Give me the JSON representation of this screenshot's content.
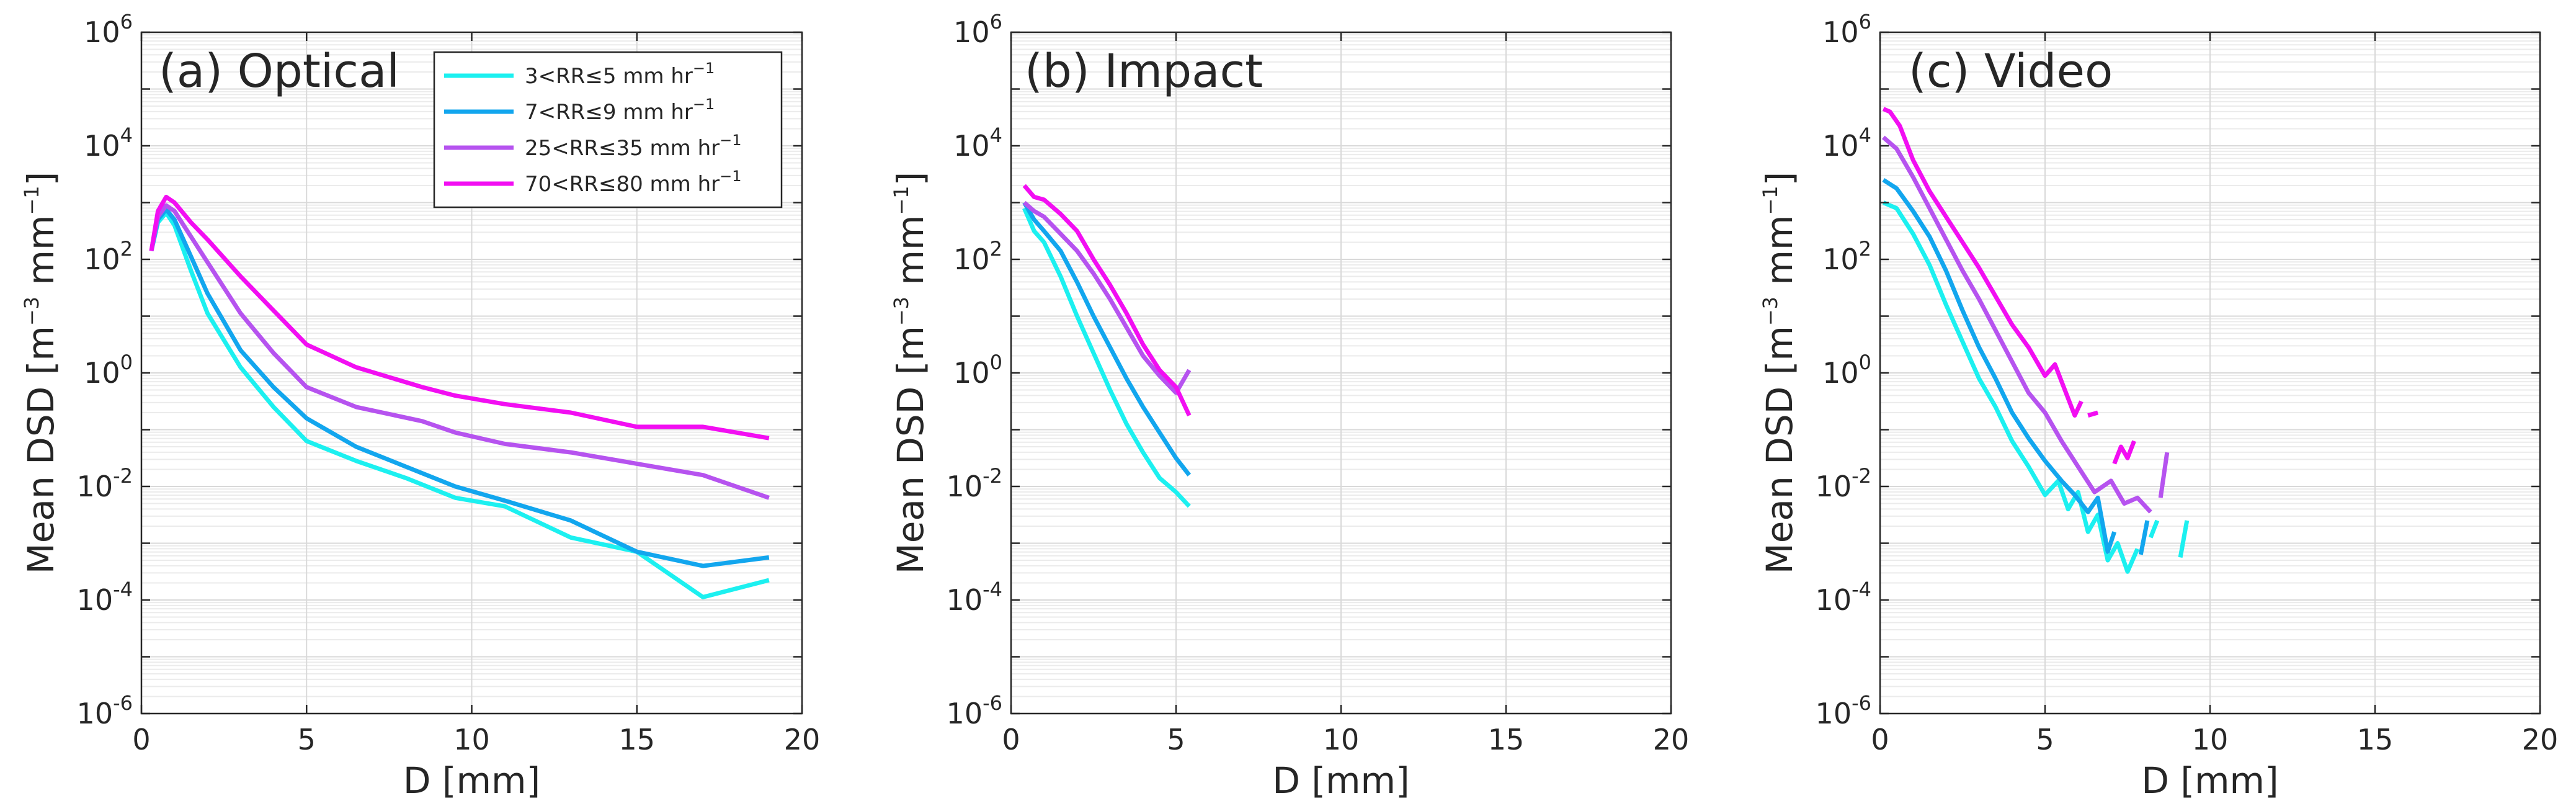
{
  "chart_data": [
    {
      "type": "line",
      "title": "(a) Optical",
      "xlabel": "D [mm]",
      "ylabel": "Mean DSD [m^-3 mm^-1]",
      "ylabel_parts": {
        "base": "Mean DSD [m",
        "exp1": "−3",
        "mid": " mm",
        "exp2": "−1",
        "end": "]"
      },
      "xlim": [
        0,
        20
      ],
      "ylim_log10": [
        -6,
        6
      ],
      "x_ticks": [
        "0",
        "5",
        "10",
        "15",
        "20"
      ],
      "y_ticks": [
        {
          "base": "10",
          "exp": "-6"
        },
        {
          "base": "10",
          "exp": "-4"
        },
        {
          "base": "10",
          "exp": "-2"
        },
        {
          "base": "10",
          "exp": "0"
        },
        {
          "base": "10",
          "exp": "2"
        },
        {
          "base": "10",
          "exp": "4"
        },
        {
          "base": "10",
          "exp": "6"
        }
      ],
      "grid": true,
      "legend_position": "top-right",
      "series": [
        {
          "name": "3<RR≤5 mm hr⁻¹",
          "label_main": "3<RR≤5 mm hr",
          "label_exp": "−1",
          "color": "#1cf0f0",
          "x": [
            0.3,
            0.5,
            0.75,
            1.0,
            1.5,
            2.0,
            3.0,
            4.0,
            5.0,
            6.5,
            8.0,
            9.5,
            11.0,
            13.0,
            15.0,
            17.0,
            19.0
          ],
          "log10_y": [
            2.15,
            2.65,
            2.82,
            2.6,
            1.8,
            1.05,
            0.1,
            -0.6,
            -1.2,
            -1.55,
            -1.85,
            -2.2,
            -2.35,
            -2.9,
            -3.15,
            -3.95,
            -3.65
          ]
        },
        {
          "name": "7<RR≤9 mm hr⁻¹",
          "label_main": "7<RR≤9 mm hr",
          "label_exp": "−1",
          "color": "#12a6ee",
          "x": [
            0.3,
            0.5,
            0.75,
            1.0,
            1.5,
            2.0,
            3.0,
            4.0,
            5.0,
            6.5,
            8.0,
            9.5,
            11.0,
            13.0,
            15.0,
            17.0,
            19.0
          ],
          "log10_y": [
            2.15,
            2.7,
            2.88,
            2.7,
            2.05,
            1.4,
            0.4,
            -0.25,
            -0.8,
            -1.3,
            -1.65,
            -2.0,
            -2.25,
            -2.6,
            -3.15,
            -3.4,
            -3.25
          ]
        },
        {
          "name": "25<RR≤35 mm hr⁻¹",
          "label_main": "25<RR≤35 mm hr",
          "label_exp": "−1",
          "color": "#b653ef",
          "x": [
            0.3,
            0.5,
            0.75,
            1.0,
            1.5,
            2.0,
            3.0,
            4.0,
            5.0,
            6.5,
            8.5,
            9.5,
            11.0,
            13.0,
            15.0,
            17.0,
            19.0
          ],
          "log10_y": [
            2.15,
            2.75,
            2.95,
            2.85,
            2.4,
            1.95,
            1.05,
            0.35,
            -0.25,
            -0.6,
            -0.85,
            -1.05,
            -1.25,
            -1.4,
            -1.6,
            -1.8,
            -2.2
          ]
        },
        {
          "name": "70<RR≤80 mm hr⁻¹",
          "label_main": "70<RR≤80 mm hr",
          "label_exp": "−1",
          "color": "#f20ef2",
          "x": [
            0.3,
            0.5,
            0.75,
            1.0,
            1.5,
            2.0,
            3.0,
            4.0,
            5.0,
            6.5,
            8.5,
            9.5,
            11.0,
            13.0,
            15.0,
            16.0,
            17.0,
            19.0
          ],
          "log10_y": [
            2.15,
            2.85,
            3.1,
            3.0,
            2.65,
            2.35,
            1.7,
            1.1,
            0.5,
            0.1,
            -0.25,
            -0.4,
            -0.55,
            -0.7,
            -0.95,
            -0.95,
            -0.95,
            -1.15
          ]
        }
      ]
    },
    {
      "type": "line",
      "title": "(b) Impact",
      "xlabel": "D [mm]",
      "ylabel": "Mean DSD [m^-3 mm^-1]",
      "ylabel_parts": {
        "base": "Mean DSD [m",
        "exp1": "−3",
        "mid": " mm",
        "exp2": "−1",
        "end": "]"
      },
      "xlim": [
        0,
        20
      ],
      "ylim_log10": [
        -6,
        6
      ],
      "x_ticks": [
        "0",
        "5",
        "10",
        "15",
        "20"
      ],
      "y_ticks": [
        {
          "base": "10",
          "exp": "-6"
        },
        {
          "base": "10",
          "exp": "-4"
        },
        {
          "base": "10",
          "exp": "-2"
        },
        {
          "base": "10",
          "exp": "0"
        },
        {
          "base": "10",
          "exp": "2"
        },
        {
          "base": "10",
          "exp": "4"
        },
        {
          "base": "10",
          "exp": "6"
        }
      ],
      "grid": true,
      "series": [
        {
          "name": "3<RR≤5 mm hr⁻¹",
          "color": "#1cf0f0",
          "x": [
            0.4,
            0.7,
            1.0,
            1.5,
            2.0,
            2.5,
            3.0,
            3.5,
            4.0,
            4.5,
            5.0,
            5.4
          ],
          "log10_y": [
            2.9,
            2.5,
            2.3,
            1.7,
            1.0,
            0.35,
            -0.3,
            -0.9,
            -1.4,
            -1.85,
            -2.1,
            -2.35
          ]
        },
        {
          "name": "7<RR≤9 mm hr⁻¹",
          "color": "#12a6ee",
          "x": [
            0.4,
            0.7,
            1.0,
            1.5,
            2.0,
            2.5,
            3.0,
            3.5,
            4.0,
            4.5,
            5.0,
            5.4
          ],
          "log10_y": [
            3.0,
            2.7,
            2.5,
            2.15,
            1.6,
            1.0,
            0.45,
            -0.1,
            -0.6,
            -1.05,
            -1.5,
            -1.8
          ]
        },
        {
          "name": "25<RR≤35 mm hr⁻¹",
          "color": "#b653ef",
          "x": [
            0.4,
            0.7,
            1.0,
            1.5,
            2.0,
            2.5,
            3.0,
            3.5,
            4.0,
            4.5,
            5.0,
            5.4
          ],
          "log10_y": [
            3.0,
            2.85,
            2.75,
            2.45,
            2.15,
            1.75,
            1.3,
            0.8,
            0.3,
            -0.05,
            -0.35,
            0.05
          ]
        },
        {
          "name": "70<RR≤80 mm hr⁻¹",
          "color": "#f20ef2",
          "x": [
            0.4,
            0.7,
            1.0,
            1.5,
            2.0,
            2.5,
            3.0,
            3.5,
            4.0,
            4.5,
            5.0,
            5.4
          ],
          "log10_y": [
            3.3,
            3.1,
            3.05,
            2.8,
            2.5,
            2.0,
            1.55,
            1.05,
            0.5,
            0.05,
            -0.25,
            -0.75
          ]
        }
      ]
    },
    {
      "type": "line",
      "title": "(c) Video",
      "xlabel": "D [mm]",
      "ylabel": "Mean DSD [m^-3 mm^-1]",
      "ylabel_parts": {
        "base": "Mean DSD [m",
        "exp1": "−3",
        "mid": " mm",
        "exp2": "−1",
        "end": "]"
      },
      "xlim": [
        0,
        20
      ],
      "ylim_log10": [
        -6,
        6
      ],
      "x_ticks": [
        "0",
        "5",
        "10",
        "15",
        "20"
      ],
      "y_ticks": [
        {
          "base": "10",
          "exp": "-6"
        },
        {
          "base": "10",
          "exp": "-4"
        },
        {
          "base": "10",
          "exp": "-2"
        },
        {
          "base": "10",
          "exp": "0"
        },
        {
          "base": "10",
          "exp": "2"
        },
        {
          "base": "10",
          "exp": "4"
        },
        {
          "base": "10",
          "exp": "6"
        }
      ],
      "grid": true,
      "series": [
        {
          "name": "3<RR≤5 mm hr⁻¹",
          "color": "#1cf0f0",
          "segments": [
            {
              "x": [
                0.1,
                0.5,
                1.0,
                1.5,
                2.0,
                2.5,
                3.0,
                3.5,
                4.0,
                4.5,
                5.0,
                5.4,
                5.7,
                6.0,
                6.3,
                6.6,
                6.9,
                7.2,
                7.5,
                7.8
              ],
              "log10_y": [
                3.0,
                2.9,
                2.45,
                1.9,
                1.2,
                0.55,
                -0.1,
                -0.6,
                -1.2,
                -1.65,
                -2.15,
                -1.9,
                -2.4,
                -2.1,
                -2.8,
                -2.5,
                -3.3,
                -3.0,
                -3.5,
                -3.1
              ]
            },
            {
              "x": [
                8.2,
                8.4
              ],
              "log10_y": [
                -2.9,
                -2.6
              ]
            },
            {
              "x": [
                9.1,
                9.3
              ],
              "log10_y": [
                -3.25,
                -2.6
              ]
            }
          ]
        },
        {
          "name": "7<RR≤9 mm hr⁻¹",
          "color": "#12a6ee",
          "segments": [
            {
              "x": [
                0.1,
                0.5,
                1.0,
                1.5,
                2.0,
                2.5,
                3.0,
                3.5,
                4.0,
                4.5,
                5.0,
                5.5,
                5.9,
                6.3,
                6.6,
                6.9,
                7.1
              ],
              "log10_y": [
                3.4,
                3.25,
                2.85,
                2.4,
                1.8,
                1.1,
                0.45,
                -0.1,
                -0.7,
                -1.15,
                -1.55,
                -1.9,
                -2.15,
                -2.45,
                -2.2,
                -3.15,
                -2.8
              ]
            },
            {
              "x": [
                7.9,
                8.1
              ],
              "log10_y": [
                -3.2,
                -2.6
              ]
            }
          ]
        },
        {
          "name": "25<RR≤35 mm hr⁻¹",
          "color": "#b653ef",
          "segments": [
            {
              "x": [
                0.1,
                0.5,
                1.0,
                1.5,
                2.0,
                2.5,
                3.0,
                3.5,
                4.0,
                4.5,
                5.0,
                5.5,
                6.0,
                6.5,
                7.0,
                7.4,
                7.8,
                8.2
              ],
              "log10_y": [
                4.15,
                3.95,
                3.45,
                2.9,
                2.35,
                1.8,
                1.3,
                0.75,
                0.2,
                -0.35,
                -0.7,
                -1.2,
                -1.65,
                -2.1,
                -1.9,
                -2.3,
                -2.2,
                -2.45
              ]
            },
            {
              "x": [
                8.5,
                8.7
              ],
              "log10_y": [
                -2.2,
                -1.4
              ]
            }
          ]
        },
        {
          "name": "70<RR≤80 mm hr⁻¹",
          "color": "#f20ef2",
          "segments": [
            {
              "x": [
                0.1,
                0.3,
                0.6,
                1.0,
                1.5,
                2.0,
                2.5,
                3.0,
                3.5,
                4.0,
                4.5,
                5.0,
                5.3,
                5.6,
                5.9,
                6.1
              ],
              "log10_y": [
                4.65,
                4.6,
                4.35,
                3.75,
                3.2,
                2.75,
                2.3,
                1.85,
                1.35,
                0.85,
                0.45,
                -0.05,
                0.15,
                -0.3,
                -0.75,
                -0.5
              ]
            },
            {
              "x": [
                6.3,
                6.6
              ],
              "log10_y": [
                -0.75,
                -0.7
              ]
            },
            {
              "x": [
                7.1,
                7.3,
                7.5,
                7.7
              ],
              "log10_y": [
                -1.6,
                -1.3,
                -1.5,
                -1.2
              ]
            }
          ]
        }
      ]
    }
  ]
}
